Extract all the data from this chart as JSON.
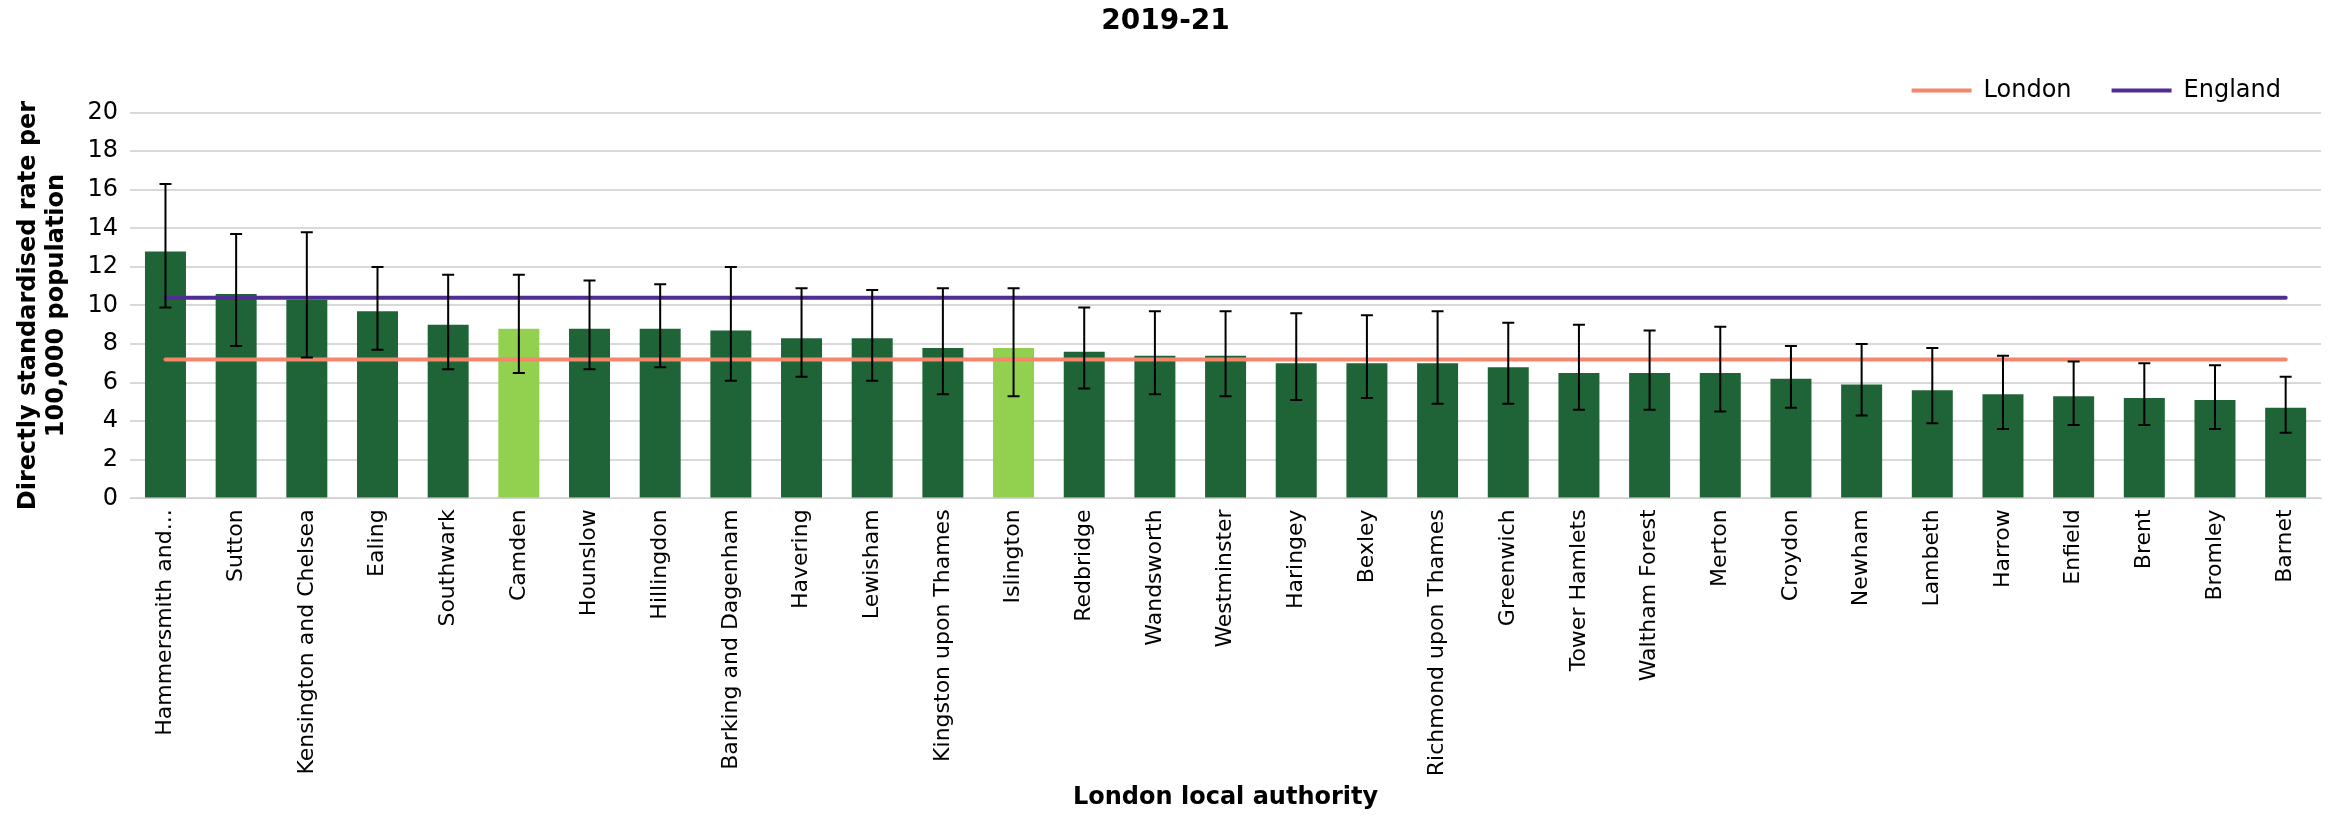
{
  "chart_data": {
    "type": "bar",
    "title": "2019-21",
    "xlabel": "London local authority",
    "ylabel": "Directly standardised rate per 100,000 population",
    "categories": [
      "Hammersmith and...",
      "Sutton",
      "Kensington and Chelsea",
      "Ealing",
      "Southwark",
      "Camden",
      "Hounslow",
      "Hillingdon",
      "Barking and Dagenham",
      "Havering",
      "Lewisham",
      "Kingston upon Thames",
      "Islington",
      "Redbridge",
      "Wandsworth",
      "Westminster",
      "Haringey",
      "Bexley",
      "Richmond upon Thames",
      "Greenwich",
      "Tower Hamlets",
      "Waltham Forest",
      "Merton",
      "Croydon",
      "Newham",
      "Lambeth",
      "Harrow",
      "Enfield",
      "Brent",
      "Bromley",
      "Barnet"
    ],
    "series": [
      {
        "colors": [
          "#1f6437",
          "#1f6437",
          "#1f6437",
          "#1f6437",
          "#1f6437",
          "#92d050",
          "#1f6437",
          "#1f6437",
          "#1f6437",
          "#1f6437",
          "#1f6437",
          "#1f6437",
          "#92d050",
          "#1f6437",
          "#1f6437",
          "#1f6437",
          "#1f6437",
          "#1f6437",
          "#1f6437",
          "#1f6437",
          "#1f6437",
          "#1f6437",
          "#1f6437",
          "#1f6437",
          "#1f6437",
          "#1f6437",
          "#1f6437",
          "#1f6437",
          "#1f6437",
          "#1f6437",
          "#1f6437"
        ],
        "values": [
          12.8,
          10.6,
          10.3,
          9.7,
          9.0,
          8.8,
          8.8,
          8.8,
          8.7,
          8.3,
          8.3,
          7.8,
          7.8,
          7.6,
          7.4,
          7.4,
          7.0,
          7.0,
          7.0,
          6.8,
          6.5,
          6.5,
          6.5,
          6.2,
          5.9,
          5.6,
          5.4,
          5.3,
          5.2,
          5.1,
          4.7
        ],
        "errors": [
          [
            9.9,
            16.3
          ],
          [
            7.9,
            13.7
          ],
          [
            7.3,
            13.8
          ],
          [
            7.7,
            12.0
          ],
          [
            6.7,
            11.6
          ],
          [
            6.5,
            11.6
          ],
          [
            6.7,
            11.3
          ],
          [
            6.8,
            11.1
          ],
          [
            6.1,
            12.0
          ],
          [
            6.3,
            10.9
          ],
          [
            6.1,
            10.8
          ],
          [
            5.4,
            10.9
          ],
          [
            5.3,
            10.9
          ],
          [
            5.7,
            9.9
          ],
          [
            5.4,
            9.7
          ],
          [
            5.3,
            9.7
          ],
          [
            5.1,
            9.6
          ],
          [
            5.2,
            9.5
          ],
          [
            4.9,
            9.7
          ],
          [
            4.9,
            9.1
          ],
          [
            4.6,
            9.0
          ],
          [
            4.6,
            8.7
          ],
          [
            4.5,
            8.9
          ],
          [
            4.7,
            7.9
          ],
          [
            4.3,
            8.0
          ],
          [
            3.9,
            7.8
          ],
          [
            3.6,
            7.4
          ],
          [
            3.8,
            7.1
          ],
          [
            3.8,
            7.0
          ],
          [
            3.6,
            6.9
          ],
          [
            3.4,
            6.3
          ]
        ]
      },
      {
        "type": "line",
        "name": "London",
        "color": "#f4866a",
        "values": [
          7.2,
          7.2,
          7.2,
          7.2,
          7.2,
          7.2,
          7.2,
          7.2,
          7.2,
          7.2,
          7.2,
          7.2,
          7.2,
          7.2,
          7.2,
          7.2,
          7.2,
          7.2,
          7.2,
          7.2,
          7.2,
          7.2,
          7.2,
          7.2,
          7.2,
          7.2,
          7.2,
          7.2,
          7.2,
          7.2,
          7.2
        ]
      },
      {
        "type": "line",
        "name": "England",
        "color": "#4f2d94",
        "values": [
          10.4,
          10.4,
          10.4,
          10.4,
          10.4,
          10.4,
          10.4,
          10.4,
          10.4,
          10.4,
          10.4,
          10.4,
          10.4,
          10.4,
          10.4,
          10.4,
          10.4,
          10.4,
          10.4,
          10.4,
          10.4,
          10.4,
          10.4,
          10.4,
          10.4,
          10.4,
          10.4,
          10.4,
          10.4,
          10.4,
          10.4
        ]
      }
    ],
    "ylim": [
      0,
      20
    ],
    "yticks": [
      0,
      2,
      4,
      6,
      8,
      10,
      12,
      14,
      16,
      18,
      20
    ],
    "grid": "y",
    "legend": "top right",
    "marker": "none"
  }
}
